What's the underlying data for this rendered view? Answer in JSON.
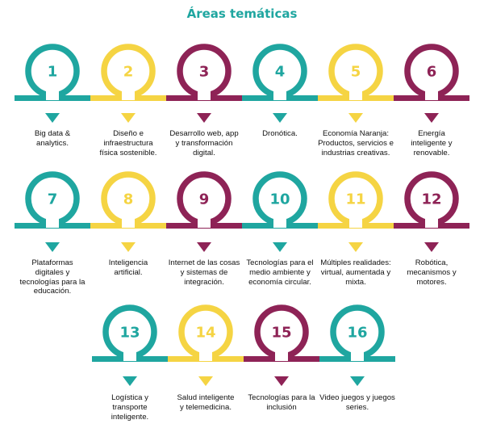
{
  "title": "Áreas temáticas",
  "colors": {
    "teal": "#1fa6a0",
    "yellow": "#f5d443",
    "plum": "#8e2356",
    "title": "#1fa6a0"
  },
  "rows": [
    {
      "items": [
        {
          "number": "1",
          "color": "teal",
          "label": "Big data &\nanalytics."
        },
        {
          "number": "2",
          "color": "yellow",
          "label": "Diseño e\ninfraestructura\nfísica sostenible."
        },
        {
          "number": "3",
          "color": "plum",
          "label": "Desarrollo web, app\ny transformación\ndigital."
        },
        {
          "number": "4",
          "color": "teal",
          "label": "Dronótica."
        },
        {
          "number": "5",
          "color": "yellow",
          "label": "Economía Naranja:\nProductos, servicios e\nindustrias creativas."
        },
        {
          "number": "6",
          "color": "plum",
          "label": "Energía\ninteligente y\nrenovable."
        }
      ]
    },
    {
      "items": [
        {
          "number": "7",
          "color": "teal",
          "label": "Plataformas\ndigitales y\ntecnologías para la\neducación."
        },
        {
          "number": "8",
          "color": "yellow",
          "label": "Inteligencia\nartificial."
        },
        {
          "number": "9",
          "color": "plum",
          "label": "Internet de las cosas\ny sistemas de\nintegración."
        },
        {
          "number": "10",
          "color": "teal",
          "label": "Tecnologías para el\nmedio ambiente y\neconomía circular."
        },
        {
          "number": "11",
          "color": "yellow",
          "label": "Múltiples realidades:\nvirtual, aumentada y\nmixta."
        },
        {
          "number": "12",
          "color": "plum",
          "label": "Robótica,\nmecanismos y\nmotores."
        }
      ]
    },
    {
      "items": [
        {
          "number": "13",
          "color": "teal",
          "label": "Logística y\ntransporte\ninteligente."
        },
        {
          "number": "14",
          "color": "yellow",
          "label": "Salud inteligente\ny telemedicina."
        },
        {
          "number": "15",
          "color": "plum",
          "label": "Tecnologías para la\ninclusión"
        },
        {
          "number": "16",
          "color": "teal",
          "label": "Video juegos y juegos\nseries."
        }
      ]
    }
  ]
}
